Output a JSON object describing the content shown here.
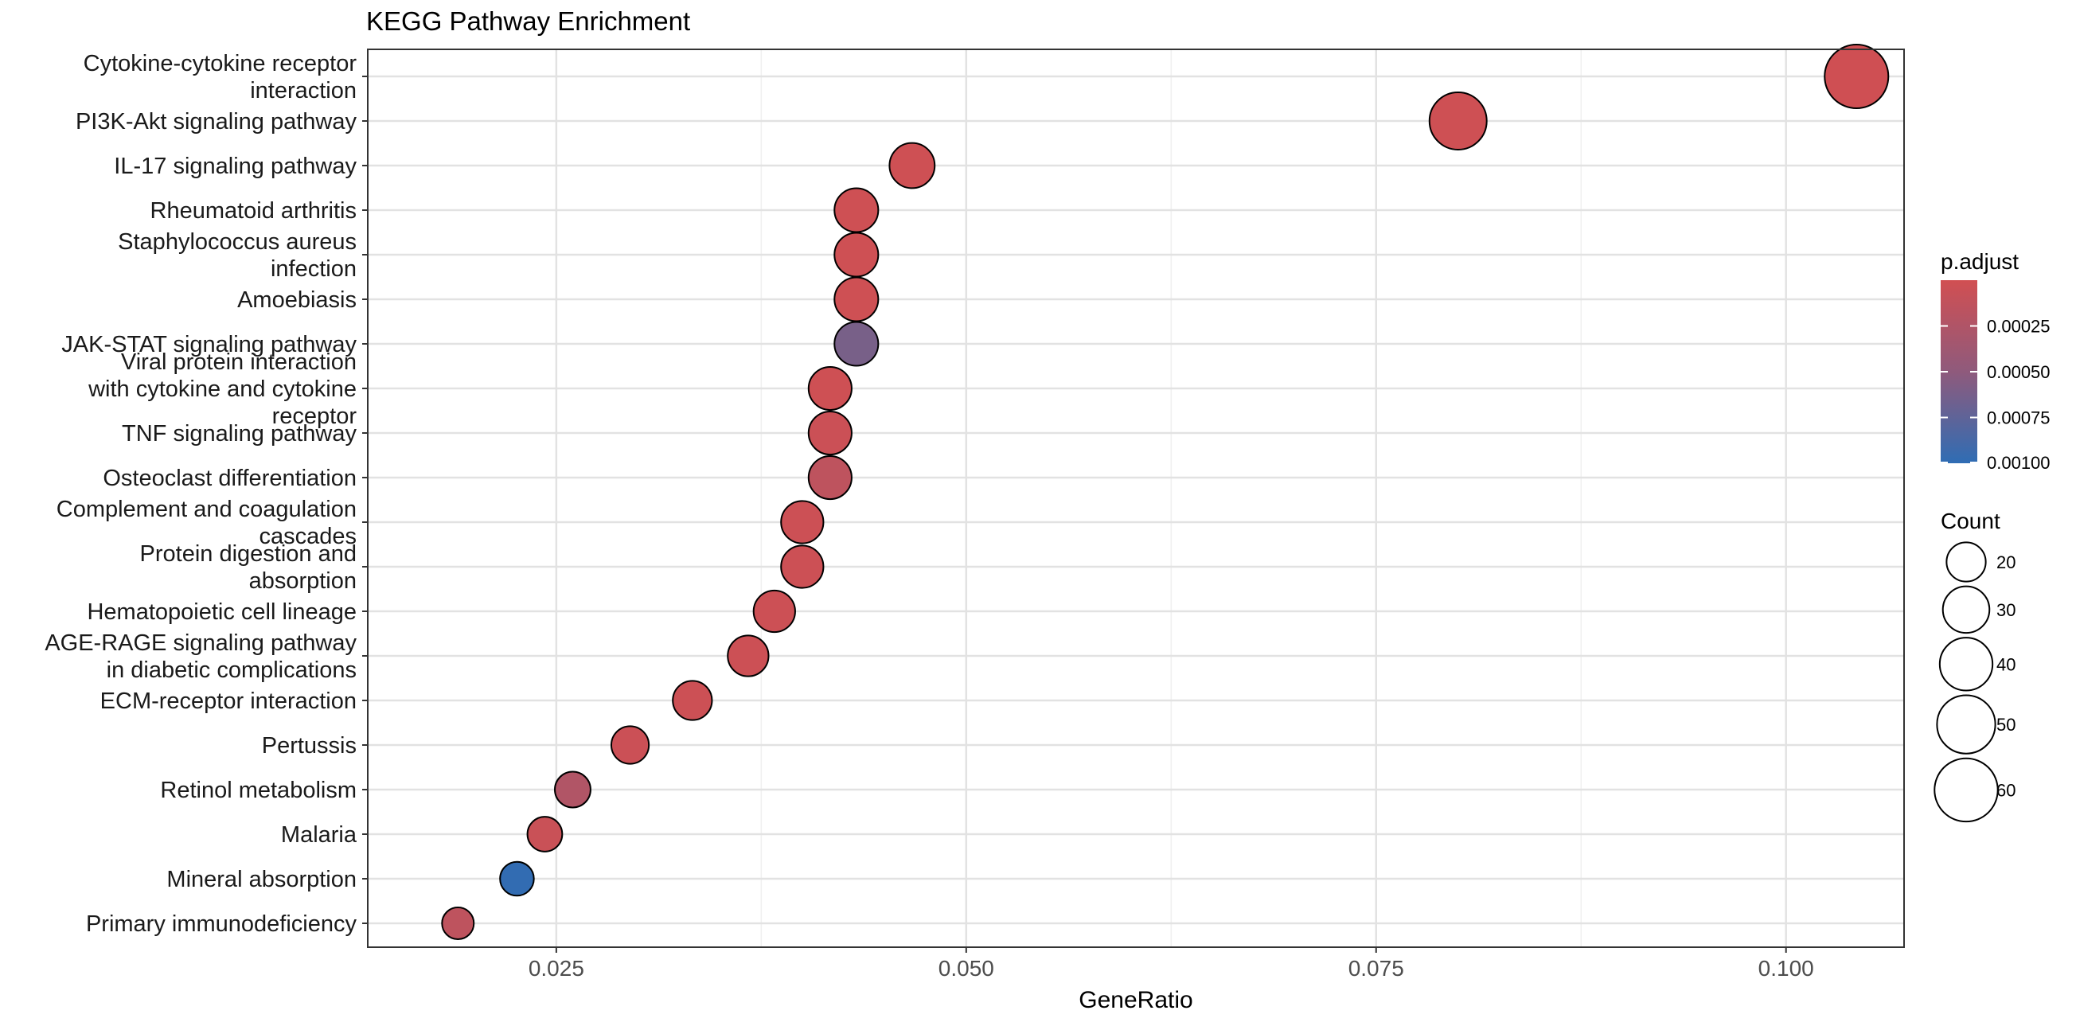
{
  "chart_data": {
    "type": "scatter",
    "title": "KEGG Pathway Enrichment",
    "xlabel": "GeneRatio",
    "ylabel": "",
    "xlim": [
      0.0135,
      0.1072
    ],
    "xticks": [
      0.025,
      0.05,
      0.075,
      0.1
    ],
    "xtick_labels": [
      "0.025",
      "0.050",
      "0.075",
      "0.100"
    ],
    "grid": true,
    "categories": [
      "Cytokine-cytokine receptor interaction",
      "PI3K-Akt signaling pathway",
      "IL-17 signaling pathway",
      "Rheumatoid arthritis",
      "Staphylococcus aureus infection",
      "Amoebiasis",
      "JAK-STAT signaling pathway",
      "Viral protein interaction with cytokine and cytokine receptor",
      "TNF signaling pathway",
      "Osteoclast differentiation",
      "Complement and coagulation cascades",
      "Protein digestion and absorption",
      "Hematopoietic cell lineage",
      "AGE-RAGE signaling pathway in diabetic complications",
      "ECM-receptor interaction",
      "Pertussis",
      "Retinol metabolism",
      "Malaria",
      "Mineral absorption",
      "Primary immunodeficiency"
    ],
    "category_label_lines": [
      [
        "Cytokine-cytokine receptor",
        "interaction"
      ],
      [
        "PI3K-Akt signaling pathway"
      ],
      [
        "IL-17 signaling pathway"
      ],
      [
        "Rheumatoid arthritis"
      ],
      [
        "Staphylococcus aureus",
        "infection"
      ],
      [
        "Amoebiasis"
      ],
      [
        "JAK-STAT signaling pathway"
      ],
      [
        "Viral protein interaction",
        "with cytokine and cytokine",
        "receptor"
      ],
      [
        "TNF signaling pathway"
      ],
      [
        "Osteoclast differentiation"
      ],
      [
        "Complement and coagulation",
        "cascades"
      ],
      [
        "Protein digestion and",
        "absorption"
      ],
      [
        "Hematopoietic cell lineage"
      ],
      [
        "AGE-RAGE signaling pathway",
        "in diabetic complications"
      ],
      [
        "ECM-receptor interaction"
      ],
      [
        "Pertussis"
      ],
      [
        "Retinol metabolism"
      ],
      [
        "Malaria"
      ],
      [
        "Mineral absorption"
      ],
      [
        "Primary immunodeficiency"
      ]
    ],
    "gene_ratio": [
      0.1043,
      0.08,
      0.0467,
      0.0433,
      0.0433,
      0.0433,
      0.0433,
      0.0417,
      0.0417,
      0.0417,
      0.04,
      0.04,
      0.0383,
      0.0367,
      0.0333,
      0.0295,
      0.026,
      0.0243,
      0.0226,
      0.019
    ],
    "count": [
      61,
      48,
      28,
      26,
      26,
      26,
      26,
      25,
      25,
      25,
      24,
      24,
      23,
      22,
      20,
      18,
      16,
      15,
      14,
      12
    ],
    "p_adjust": [
      1e-05,
      2e-05,
      2e-05,
      2e-05,
      2e-05,
      2e-05,
      0.00055,
      2e-05,
      4e-05,
      0.00012,
      3e-05,
      3e-05,
      3e-05,
      3e-05,
      3e-05,
      4e-05,
      0.0002,
      5e-05,
      0.00098,
      0.00012
    ],
    "legend": {
      "color_title": "p.adjust",
      "color_ticks": [
        0.00025,
        0.0005,
        0.00075,
        0.001
      ],
      "color_tick_labels": [
        "0.00025",
        "0.00050",
        "0.00075",
        "0.00100"
      ],
      "color_low": "#d14f52",
      "color_high": "#2f6db4",
      "color_range": [
        0.0,
        0.001
      ],
      "size_title": "Count",
      "size_values": [
        20,
        30,
        40,
        50,
        60
      ],
      "size_labels": [
        "20",
        "30",
        "40",
        "50",
        "60"
      ],
      "placement": "right"
    }
  }
}
